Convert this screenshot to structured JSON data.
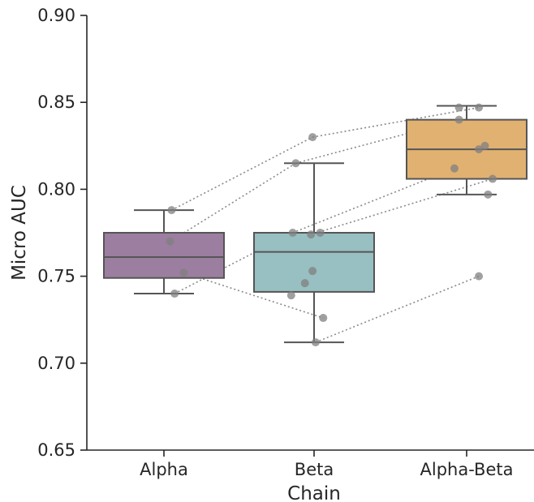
{
  "chart_data": {
    "type": "box",
    "xlabel": "Chain",
    "ylabel": "Micro AUC",
    "ylim": [
      0.65,
      0.9
    ],
    "yticks": [
      "0.65",
      "0.70",
      "0.75",
      "0.80",
      "0.85",
      "0.90"
    ],
    "categories": [
      "Alpha",
      "Beta",
      "Alpha-Beta"
    ],
    "boxes": [
      {
        "category": "Alpha",
        "color": "#9c7ea0",
        "whisker_low": 0.74,
        "q1": 0.749,
        "median": 0.761,
        "q3": 0.775,
        "whisker_high": 0.788
      },
      {
        "category": "Beta",
        "color": "#98bfc1",
        "whisker_low": 0.712,
        "q1": 0.741,
        "median": 0.764,
        "q3": 0.775,
        "whisker_high": 0.815
      },
      {
        "category": "Alpha-Beta",
        "color": "#e1b172",
        "whisker_low": 0.797,
        "q1": 0.806,
        "median": 0.823,
        "q3": 0.84,
        "whisker_high": 0.848
      }
    ],
    "points": [
      {
        "category": "Alpha",
        "offset": 0.05,
        "value": 0.788
      },
      {
        "category": "Alpha",
        "offset": 0.04,
        "value": 0.77
      },
      {
        "category": "Alpha",
        "offset": 0.13,
        "value": 0.752
      },
      {
        "category": "Alpha",
        "offset": 0.07,
        "value": 0.74
      },
      {
        "category": "Beta",
        "offset": -0.01,
        "value": 0.83
      },
      {
        "category": "Beta",
        "offset": -0.12,
        "value": 0.815
      },
      {
        "category": "Beta",
        "offset": -0.14,
        "value": 0.775
      },
      {
        "category": "Beta",
        "offset": -0.02,
        "value": 0.774
      },
      {
        "category": "Beta",
        "offset": 0.04,
        "value": 0.775
      },
      {
        "category": "Beta",
        "offset": -0.01,
        "value": 0.753
      },
      {
        "category": "Beta",
        "offset": -0.06,
        "value": 0.746
      },
      {
        "category": "Beta",
        "offset": -0.15,
        "value": 0.739
      },
      {
        "category": "Beta",
        "offset": 0.06,
        "value": 0.726
      },
      {
        "category": "Beta",
        "offset": 0.01,
        "value": 0.712
      },
      {
        "category": "Alpha-Beta",
        "offset": -0.05,
        "value": 0.847
      },
      {
        "category": "Alpha-Beta",
        "offset": 0.08,
        "value": 0.847
      },
      {
        "category": "Alpha-Beta",
        "offset": -0.05,
        "value": 0.84
      },
      {
        "category": "Alpha-Beta",
        "offset": 0.12,
        "value": 0.825
      },
      {
        "category": "Alpha-Beta",
        "offset": 0.08,
        "value": 0.823
      },
      {
        "category": "Alpha-Beta",
        "offset": -0.08,
        "value": 0.812
      },
      {
        "category": "Alpha-Beta",
        "offset": 0.17,
        "value": 0.806
      },
      {
        "category": "Alpha-Beta",
        "offset": 0.14,
        "value": 0.797
      },
      {
        "category": "Alpha-Beta",
        "offset": 0.08,
        "value": 0.75
      }
    ],
    "paired_lines": [
      [
        {
          "category": "Alpha",
          "offset": 0.05,
          "value": 0.788
        },
        {
          "category": "Beta",
          "offset": -0.01,
          "value": 0.83
        },
        {
          "category": "Alpha-Beta",
          "offset": 0.08,
          "value": 0.847
        }
      ],
      [
        {
          "category": "Alpha",
          "offset": 0.04,
          "value": 0.77
        },
        {
          "category": "Beta",
          "offset": -0.12,
          "value": 0.815
        },
        {
          "category": "Alpha-Beta",
          "offset": -0.05,
          "value": 0.84
        }
      ],
      [
        {
          "category": "Alpha",
          "offset": 0.07,
          "value": 0.74
        },
        {
          "category": "Beta",
          "offset": -0.14,
          "value": 0.775
        },
        {
          "category": "Alpha-Beta",
          "offset": -0.08,
          "value": 0.812
        }
      ],
      [
        {
          "category": "Alpha",
          "offset": 0.13,
          "value": 0.752
        },
        {
          "category": "Beta",
          "offset": 0.06,
          "value": 0.726
        }
      ],
      [
        {
          "category": "Beta",
          "offset": -0.02,
          "value": 0.774
        },
        {
          "category": "Alpha-Beta",
          "offset": 0.17,
          "value": 0.806
        }
      ],
      [
        {
          "category": "Beta",
          "offset": 0.01,
          "value": 0.712
        },
        {
          "category": "Alpha-Beta",
          "offset": 0.08,
          "value": 0.75
        }
      ]
    ],
    "colors": {
      "axis": "#262626",
      "box_edge": "#555555",
      "point": "#808080",
      "line": "#8a8a8a"
    }
  }
}
